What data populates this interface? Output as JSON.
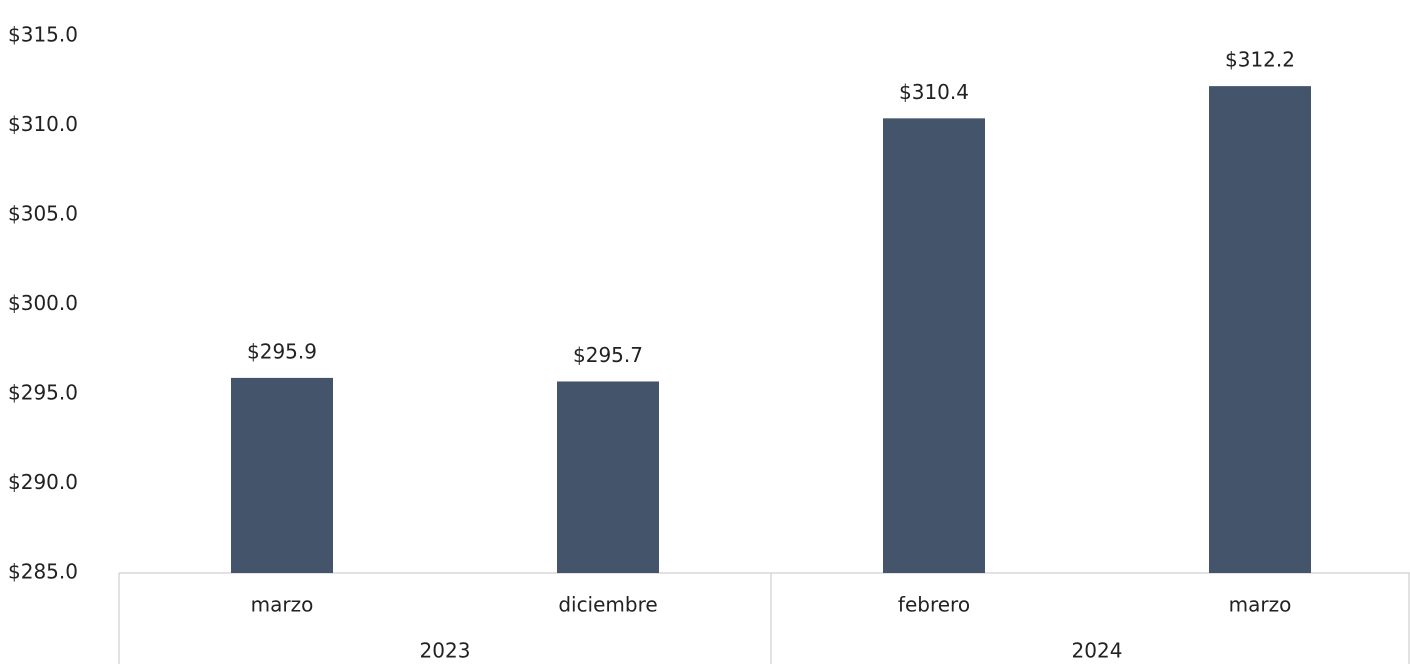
{
  "chart_data": {
    "type": "bar",
    "categories": [
      "marzo",
      "diciembre",
      "febrero",
      "marzo"
    ],
    "groups": [
      {
        "label": "2023",
        "size": 2
      },
      {
        "label": "2024",
        "size": 2
      }
    ],
    "values": [
      295.9,
      295.7,
      310.4,
      312.2
    ],
    "value_labels": [
      "$295.9",
      "$295.7",
      "$310.4",
      "$312.2"
    ],
    "color": "#44546a",
    "ylim": [
      285,
      315
    ],
    "yticks": [
      {
        "value": 285,
        "label": "$285.0"
      },
      {
        "value": 290,
        "label": "$290.0"
      },
      {
        "value": 295,
        "label": "$295.0"
      },
      {
        "value": 300,
        "label": "$300.0"
      },
      {
        "value": 305,
        "label": "$305.0"
      },
      {
        "value": 310,
        "label": "$310.0"
      },
      {
        "value": 315,
        "label": "$315.0"
      }
    ],
    "grid": false
  }
}
